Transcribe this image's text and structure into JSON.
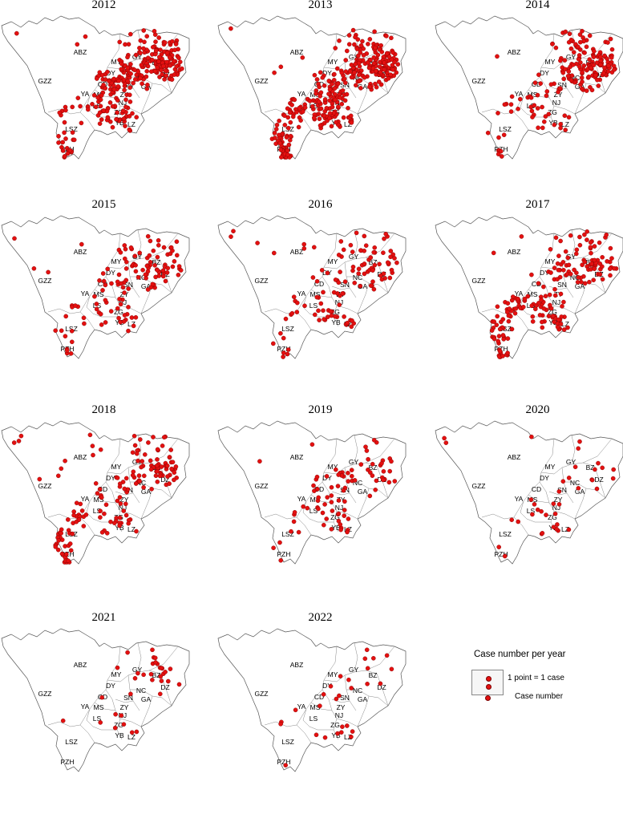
{
  "title": "",
  "region_labels": [
    "ABZ",
    "GZZ",
    "MY",
    "GY",
    "BZ",
    "DY",
    "CD",
    "DZ",
    "NC",
    "SN",
    "GA",
    "YA",
    "MS",
    "ZY",
    "LS",
    "NJ",
    "ZG",
    "YB",
    "LZ",
    "LSZ",
    "PZH"
  ],
  "panels": [
    {
      "year": "2012",
      "cases": 310
    },
    {
      "year": "2013",
      "cases": 380
    },
    {
      "year": "2014",
      "cases": 190
    },
    {
      "year": "2015",
      "cases": 130
    },
    {
      "year": "2016",
      "cases": 120
    },
    {
      "year": "2017",
      "cases": 200
    },
    {
      "year": "2018",
      "cases": 170
    },
    {
      "year": "2019",
      "cases": 85
    },
    {
      "year": "2020",
      "cases": 38
    },
    {
      "year": "2021",
      "cases": 34
    },
    {
      "year": "2022",
      "cases": 28
    }
  ],
  "legend": {
    "title": "Case number per year",
    "description": "1 point  = 1 case",
    "case_label": "Case number"
  },
  "point_color": "#e41010"
}
